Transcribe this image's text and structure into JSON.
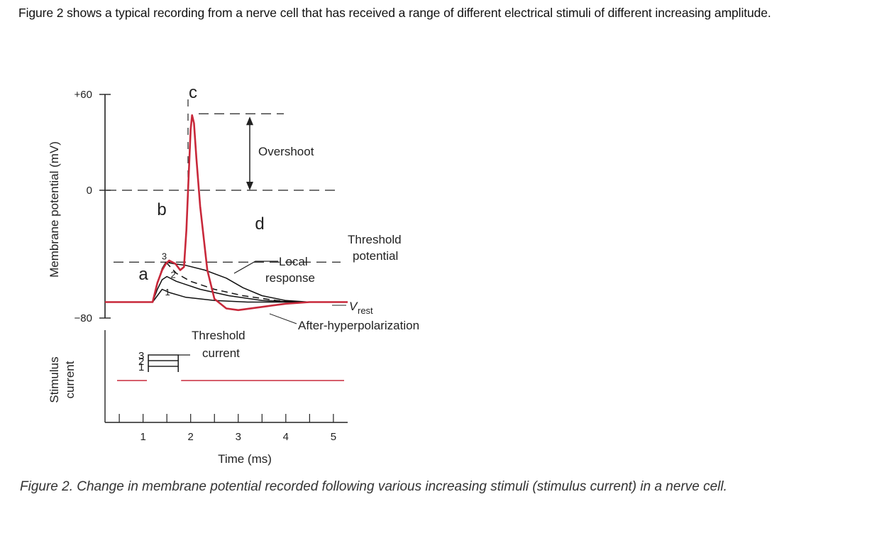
{
  "intro_text": "Figure 2 shows a typical recording from a nerve cell that has received a range of different electrical stimuli of different increasing amplitude.",
  "caption": "Figure 2. Change in membrane potential recorded following various increasing stimuli (stimulus current) in a nerve cell.",
  "colors": {
    "action_potential": "#c8283a",
    "trace": "#111111",
    "axis": "#222222"
  },
  "chart_data": {
    "type": "line",
    "title": "",
    "xlabel": "Time (ms)",
    "ylabel": "Membrane potential (mV)",
    "ylabel_bottom": [
      "Stimulus",
      "current"
    ],
    "xlim": [
      0.2,
      5.3
    ],
    "ylim": [
      -80,
      60
    ],
    "x_ticks": [
      1,
      2,
      3,
      4,
      5
    ],
    "y_ticks": [
      {
        "value": 60,
        "label": "+60"
      },
      {
        "value": 0,
        "label": "0"
      },
      {
        "value": -80,
        "label": "−80"
      }
    ],
    "threshold_mv": -45,
    "rest_mv": -70,
    "overshoot_peak_mv": 47,
    "letters": {
      "a": "a",
      "b": "b",
      "c": "c",
      "d": "d"
    },
    "annotations": {
      "overshoot": "Overshoot",
      "threshold_potential": [
        "Threshold",
        "potential"
      ],
      "local_response": [
        "Local",
        "response"
      ],
      "v_main": "V",
      "v_sub": "rest",
      "after_hyperpolarization": "After-hyperpolarization",
      "threshold_current": [
        "Threshold",
        "current"
      ]
    },
    "series": [
      {
        "label": "1",
        "points": [
          [
            0.6,
            -70
          ],
          [
            1.2,
            -70
          ],
          [
            1.3,
            -66
          ],
          [
            1.4,
            -62
          ],
          [
            1.55,
            -64
          ],
          [
            1.9,
            -67
          ],
          [
            2.5,
            -69
          ],
          [
            3.2,
            -70
          ],
          [
            4.0,
            -70
          ],
          [
            5.3,
            -70
          ]
        ]
      },
      {
        "label": "2",
        "points": [
          [
            0.6,
            -70
          ],
          [
            1.2,
            -70
          ],
          [
            1.3,
            -62
          ],
          [
            1.4,
            -56
          ],
          [
            1.5,
            -54
          ],
          [
            1.7,
            -57
          ],
          [
            2.2,
            -62
          ],
          [
            2.8,
            -66
          ],
          [
            3.5,
            -69
          ],
          [
            4.3,
            -70
          ],
          [
            5.3,
            -70
          ]
        ]
      },
      {
        "label": "3",
        "points": [
          [
            0.6,
            -70
          ],
          [
            1.2,
            -70
          ],
          [
            1.3,
            -58
          ],
          [
            1.4,
            -49
          ],
          [
            1.48,
            -45
          ],
          [
            1.65,
            -46
          ],
          [
            1.9,
            -47
          ],
          [
            2.3,
            -50
          ],
          [
            2.75,
            -55
          ],
          [
            3.1,
            -61
          ],
          [
            3.5,
            -66
          ],
          [
            4.0,
            -69
          ],
          [
            4.5,
            -70
          ],
          [
            5.3,
            -70
          ]
        ]
      },
      {
        "label": "3 (decay)",
        "dashed": true,
        "points": [
          [
            1.48,
            -45
          ],
          [
            1.7,
            -52
          ],
          [
            2.0,
            -57
          ],
          [
            2.5,
            -62
          ],
          [
            3.1,
            -66
          ],
          [
            3.8,
            -69
          ],
          [
            4.4,
            -70
          ]
        ]
      },
      {
        "label": "action potential",
        "color_key": "action_potential",
        "points": [
          [
            0.2,
            -70
          ],
          [
            1.2,
            -70
          ],
          [
            1.3,
            -58
          ],
          [
            1.4,
            -50
          ],
          [
            1.48,
            -46
          ],
          [
            1.55,
            -44
          ],
          [
            1.68,
            -46
          ],
          [
            1.78,
            -50
          ],
          [
            1.86,
            -48
          ],
          [
            1.91,
            -25
          ],
          [
            1.96,
            10
          ],
          [
            2.0,
            38
          ],
          [
            2.03,
            47
          ],
          [
            2.07,
            42
          ],
          [
            2.12,
            20
          ],
          [
            2.2,
            -10
          ],
          [
            2.35,
            -50
          ],
          [
            2.5,
            -68
          ],
          [
            2.75,
            -74
          ],
          [
            3.0,
            -75
          ],
          [
            3.5,
            -73
          ],
          [
            4.0,
            -71
          ],
          [
            4.5,
            -70
          ],
          [
            5.3,
            -70
          ]
        ]
      }
    ],
    "stimuli": [
      {
        "label": "1",
        "level": 0.5
      },
      {
        "label": "2",
        "level": 1.0
      },
      {
        "label": "3",
        "level": 1.5
      }
    ],
    "stimulus_window_ms": [
      1.2,
      1.62
    ]
  }
}
